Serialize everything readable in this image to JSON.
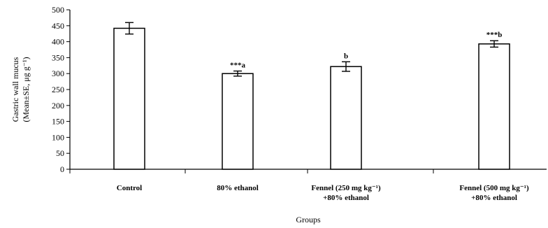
{
  "chart_data": {
    "type": "bar",
    "categories": [
      [
        "Control"
      ],
      [
        "80% ethanol"
      ],
      [
        "Fennel (250 mg kg⁻¹)",
        "+80% ethanol"
      ],
      [
        "Fennel (500 mg kg⁻¹)",
        "+80% ethanol"
      ]
    ],
    "values": [
      442,
      300,
      322,
      393
    ],
    "errors": [
      18,
      8,
      15,
      10
    ],
    "annotations": [
      "",
      "***a",
      "b",
      "***b"
    ],
    "xlabel": "Groups",
    "ylabel": [
      "Gastric wall mucus",
      "(Mean±SE, μg g⁻¹)"
    ],
    "ylim": [
      0,
      500
    ],
    "yticks": [
      0,
      50,
      100,
      150,
      200,
      250,
      300,
      350,
      400,
      450,
      500
    ],
    "grid": false,
    "bar_fill": "#ffffff",
    "bar_stroke": "#000000"
  }
}
